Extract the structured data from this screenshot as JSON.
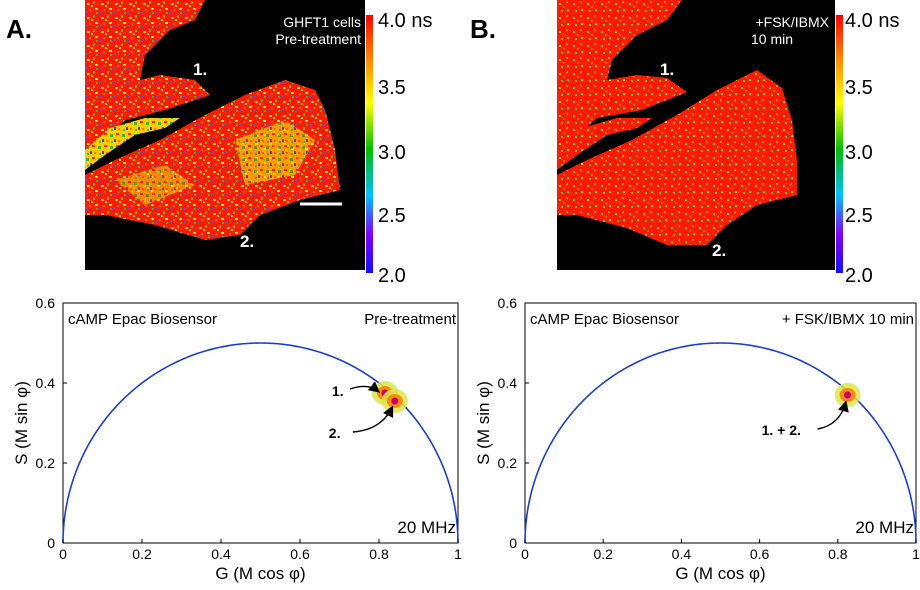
{
  "panels": [
    {
      "letter": "A.",
      "image_caption_line1": "GHFT1 cells",
      "image_caption_line2": "Pre-treatment",
      "cell_label_1": "1.",
      "cell_label_2": "2.",
      "colorbar_labels": [
        "4.0 ns",
        "3.5",
        "3.0",
        "2.5",
        "2.0"
      ],
      "chart_data": {
        "type": "scatter",
        "title": "",
        "sensor_label": "cAMP Epac Biosensor",
        "condition_label": "Pre-treatment",
        "frequency_label": "20 MHz",
        "xlabel": "G (M cos φ)",
        "ylabel": "S (M sin φ)",
        "xlim": [
          0,
          1
        ],
        "ylim": [
          0,
          0.6
        ],
        "xticks": [
          "0",
          "0.2",
          "0.4",
          "0.6",
          "0.8",
          "1"
        ],
        "yticks": [
          "0",
          "0.2",
          "0.4",
          "0.6"
        ],
        "curve": "universal semicircle",
        "clusters": [
          {
            "label": "1.",
            "x": 0.815,
            "y": 0.375
          },
          {
            "label": "2.",
            "x": 0.84,
            "y": 0.355
          }
        ],
        "arrow_labels": [
          "1.",
          "2."
        ]
      }
    },
    {
      "letter": "B.",
      "image_caption_line1": "+FSK/IBMX",
      "image_caption_line2": "10 min",
      "cell_label_1": "1.",
      "cell_label_2": "2.",
      "colorbar_labels": [
        "4.0 ns",
        "3.5",
        "3.0",
        "2.5",
        "2.0"
      ],
      "chart_data": {
        "type": "scatter",
        "title": "",
        "sensor_label": "cAMP Epac Biosensor",
        "condition_label": "+ FSK/IBMX 10 min",
        "frequency_label": "20 MHz",
        "xlabel": "G (M cos φ)",
        "ylabel": "S (M sin φ)",
        "xlim": [
          0,
          1
        ],
        "ylim": [
          0,
          0.6
        ],
        "xticks": [
          "0",
          "0.2",
          "0.4",
          "0.6",
          "0.8",
          "1"
        ],
        "yticks": [
          "0",
          "0.2",
          "0.4",
          "0.6"
        ],
        "curve": "universal semicircle",
        "clusters": [
          {
            "label": "1. + 2.",
            "x": 0.825,
            "y": 0.37
          }
        ],
        "arrow_labels": [
          "1. + 2."
        ]
      }
    }
  ],
  "colors": {
    "semicircle": "#1a3fd6",
    "cluster_outer": "#d9e84a",
    "cluster_mid": "#ff7f00",
    "cluster_core": "#c4007a"
  }
}
